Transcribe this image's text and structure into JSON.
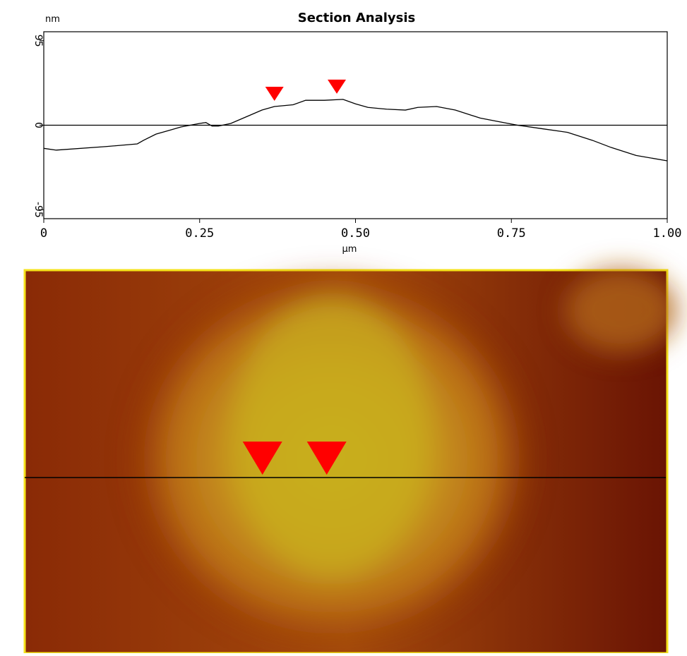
{
  "chart_data": {
    "type": "line",
    "title": "Section Analysis",
    "y_unit": "nm",
    "x_label": "µm",
    "x": [
      0,
      0.02,
      0.1,
      0.15,
      0.16,
      0.18,
      0.2,
      0.22,
      0.25,
      0.26,
      0.27,
      0.28,
      0.3,
      0.33,
      0.35,
      0.37,
      0.4,
      0.42,
      0.45,
      0.48,
      0.5,
      0.52,
      0.55,
      0.58,
      0.6,
      0.63,
      0.66,
      0.7,
      0.73,
      0.76,
      0.8,
      0.84,
      0.88,
      0.91,
      0.95,
      1.0
    ],
    "series": [
      {
        "color": "#000000",
        "values": [
          -26,
          -28,
          -24,
          -21,
          -17,
          -10,
          -6,
          -2,
          2,
          3,
          -1,
          -1,
          2,
          11,
          17,
          21,
          23,
          28,
          28,
          29,
          24,
          20,
          18,
          17,
          20,
          21,
          17,
          8,
          4,
          0,
          -4,
          -8,
          -17,
          -25,
          -34,
          -40
        ]
      }
    ],
    "markers": {
      "color": "#ff0000",
      "x": [
        0.37,
        0.47
      ]
    },
    "xlim": [
      0,
      1.0
    ],
    "xticks": [
      0,
      {
        "value": 0.25,
        "label": "0.25"
      },
      {
        "value": 0.5,
        "label": "0.50"
      },
      {
        "value": 0.75,
        "label": "0.75"
      },
      {
        "value": 1.0,
        "label": "1.00"
      }
    ],
    "ylim": [
      -105,
      105
    ],
    "yticks": [
      95,
      0,
      -95
    ],
    "zero_line": true
  }
}
